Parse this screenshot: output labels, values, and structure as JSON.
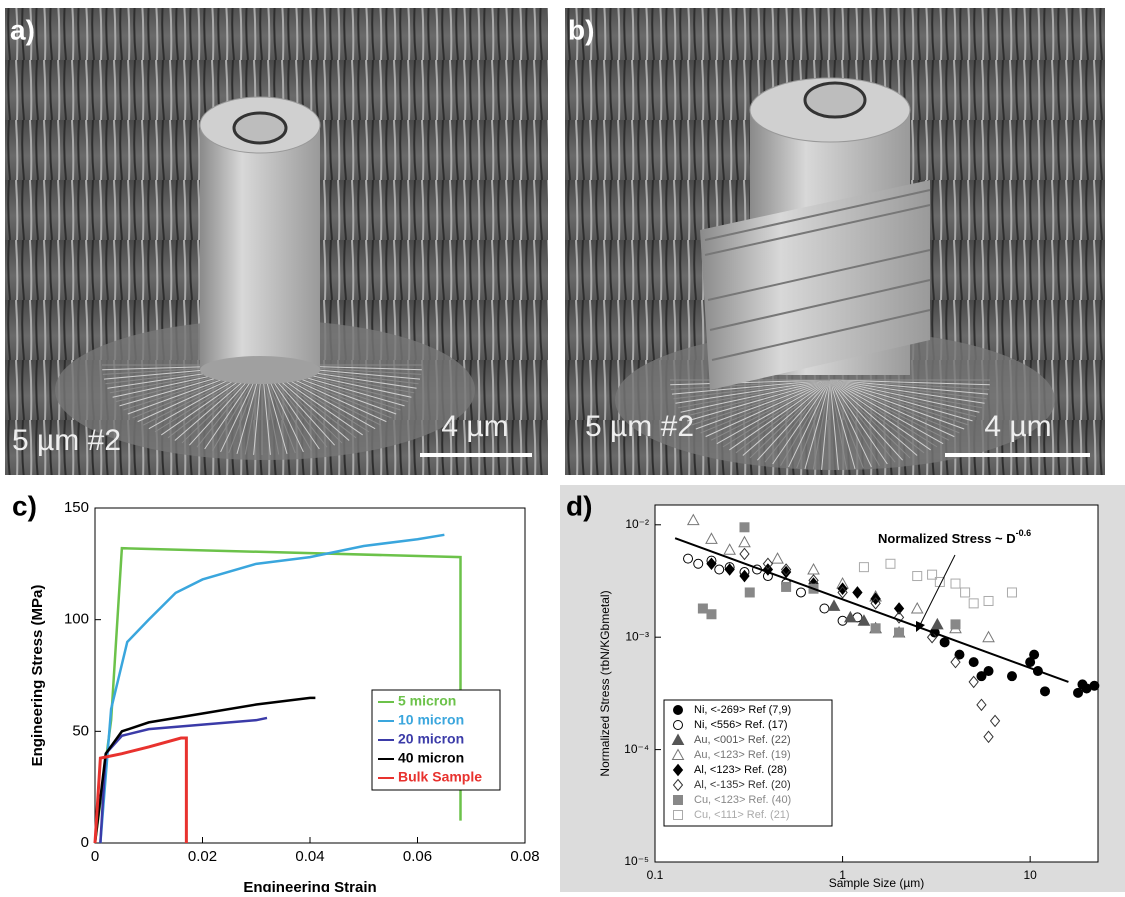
{
  "panels": [
    {
      "label": "a)",
      "caption": "5 µm #2",
      "scale_bar": "4 µm"
    },
    {
      "label": "b)",
      "caption": "5 µm #2",
      "scale_bar": "4 µm"
    }
  ],
  "chart_data": [
    {
      "type": "line",
      "label": "c)",
      "x_label": "Engineering Strain",
      "y_label": "Engineering Stress (MPa)",
      "xlim": [
        0,
        0.08
      ],
      "xticks": [
        0,
        0.02,
        0.04,
        0.06,
        0.08
      ],
      "ylim": [
        0,
        150
      ],
      "yticks": [
        0,
        50,
        100,
        150
      ],
      "legend": "lower-right",
      "series": [
        {
          "name": "5 micron",
          "color": "#6cc24a",
          "x": [
            0,
            0.003,
            0.005,
            0.068,
            0.068
          ],
          "values": [
            0,
            55,
            132,
            128,
            10
          ]
        },
        {
          "name": "10 micron",
          "color": "#3aa6dd",
          "x": [
            0.001,
            0.003,
            0.006,
            0.01,
            0.015,
            0.02,
            0.03,
            0.04,
            0.05,
            0.06,
            0.065
          ],
          "values": [
            0,
            60,
            90,
            100,
            112,
            118,
            125,
            128,
            133,
            136,
            138
          ]
        },
        {
          "name": "20 micron",
          "color": "#3b3ba8",
          "x": [
            0.001,
            0.002,
            0.005,
            0.01,
            0.02,
            0.03,
            0.032
          ],
          "values": [
            0,
            40,
            48,
            51,
            53,
            55,
            56
          ]
        },
        {
          "name": "40 micron",
          "color": "#000000",
          "x": [
            0,
            0.002,
            0.005,
            0.01,
            0.02,
            0.03,
            0.04,
            0.041
          ],
          "values": [
            0,
            40,
            50,
            54,
            58,
            62,
            65,
            65
          ]
        },
        {
          "name": "Bulk Sample",
          "color": "#e8322e",
          "x": [
            0,
            0.001,
            0.005,
            0.01,
            0.016,
            0.017,
            0.017
          ],
          "values": [
            0,
            38,
            40,
            43,
            47,
            47,
            0
          ]
        }
      ]
    },
    {
      "type": "scatter",
      "label": "d)",
      "x_label": "Sample Size (µm)",
      "y_label": "Normalized Stress (τbN/KGbmetal)",
      "log_x": true,
      "log_y": true,
      "xlim": [
        0.1,
        23
      ],
      "xticks": [
        0.1,
        1,
        10
      ],
      "ylim": [
        1e-05,
        0.015
      ],
      "yticks": [
        {
          "value": 1e-05,
          "label": "10⁻⁵"
        },
        {
          "value": 0.0001,
          "label": "10⁻⁴"
        },
        {
          "value": 0.001,
          "label": "10⁻³"
        },
        {
          "value": 0.01,
          "label": "10⁻²"
        }
      ],
      "annotation": {
        "text": "Normalized Stress ~ D",
        "superscript": "-0.6"
      },
      "fit": {
        "x": [
          0.128,
          16
        ],
        "values": [
          0.0076,
          0.0004
        ],
        "color": "#000000"
      },
      "legend": "lower-left",
      "series": [
        {
          "name": "Ni, <-269> Ref (7,9)",
          "color": "#000000",
          "marker": "circle",
          "filled": true,
          "x": [
            3.1,
            3.5,
            4.2,
            5,
            5.5,
            6,
            8,
            10,
            10.5,
            11,
            12,
            18,
            19,
            20,
            22
          ],
          "values": [
            0.0011,
            0.0009,
            0.0007,
            0.0006,
            0.00045,
            0.0005,
            0.00045,
            0.0006,
            0.0007,
            0.0005,
            0.00033,
            0.00032,
            0.00038,
            0.00035,
            0.00037
          ]
        },
        {
          "name": "Ni, <556> Ref. (17)",
          "color": "#000000",
          "marker": "circle",
          "filled": false,
          "x": [
            0.15,
            0.17,
            0.2,
            0.22,
            0.25,
            0.3,
            0.35,
            0.4,
            0.5,
            0.6,
            0.8,
            1,
            1.2
          ],
          "values": [
            0.005,
            0.0045,
            0.0048,
            0.004,
            0.0042,
            0.0038,
            0.004,
            0.0035,
            0.003,
            0.0025,
            0.0018,
            0.0014,
            0.0015
          ]
        },
        {
          "name": "Au, <001> Ref. (22)",
          "color": "#555555",
          "marker": "triangle",
          "filled": true,
          "x": [
            0.9,
            1.1,
            1.3,
            1.5,
            2,
            3.2
          ],
          "values": [
            0.0019,
            0.0015,
            0.0014,
            0.0012,
            0.0011,
            0.0013
          ]
        },
        {
          "name": "Au, <123> Ref. (19)",
          "color": "#777777",
          "marker": "triangle",
          "filled": false,
          "x": [
            0.16,
            0.2,
            0.25,
            0.3,
            0.45,
            0.7,
            1,
            1.5,
            2.5,
            4,
            6
          ],
          "values": [
            0.011,
            0.0075,
            0.006,
            0.007,
            0.005,
            0.004,
            0.003,
            0.0023,
            0.0018,
            0.0012,
            0.001
          ]
        },
        {
          "name": "Al, <123> Ref. (28)",
          "color": "#000000",
          "marker": "diamond",
          "filled": true,
          "x": [
            0.2,
            0.25,
            0.3,
            0.4,
            0.5,
            0.7,
            1,
            1.2,
            1.5,
            2
          ],
          "values": [
            0.0045,
            0.004,
            0.0035,
            0.004,
            0.0038,
            0.003,
            0.0027,
            0.0025,
            0.0022,
            0.0018
          ]
        },
        {
          "name": "Al, <-135> Ref. (20)",
          "color": "#333333",
          "marker": "diamond",
          "filled": false,
          "x": [
            0.3,
            0.4,
            0.5,
            0.7,
            1,
            1.5,
            2,
            3,
            4,
            5,
            5.5,
            6,
            6.5
          ],
          "values": [
            0.0055,
            0.0045,
            0.004,
            0.0032,
            0.0025,
            0.002,
            0.0015,
            0.001,
            0.0006,
            0.0004,
            0.00025,
            0.00013,
            0.00018
          ]
        },
        {
          "name": "Cu, <123> Ref. (40)",
          "color": "#888888",
          "marker": "square",
          "filled": true,
          "x": [
            0.18,
            0.2,
            0.3,
            0.32,
            0.5,
            0.7,
            1.5,
            2,
            4
          ],
          "values": [
            0.0018,
            0.0016,
            0.0095,
            0.0025,
            0.0028,
            0.0027,
            0.0012,
            0.0011,
            0.0013
          ]
        },
        {
          "name": "Cu, <111> Ref. (21)",
          "color": "#aaaaaa",
          "marker": "square",
          "filled": false,
          "x": [
            1.3,
            1.8,
            2.5,
            3,
            3.3,
            4,
            4.5,
            5,
            6,
            8
          ],
          "values": [
            0.0042,
            0.0045,
            0.0035,
            0.0036,
            0.0031,
            0.003,
            0.0025,
            0.002,
            0.0021,
            0.0025
          ]
        }
      ]
    }
  ]
}
